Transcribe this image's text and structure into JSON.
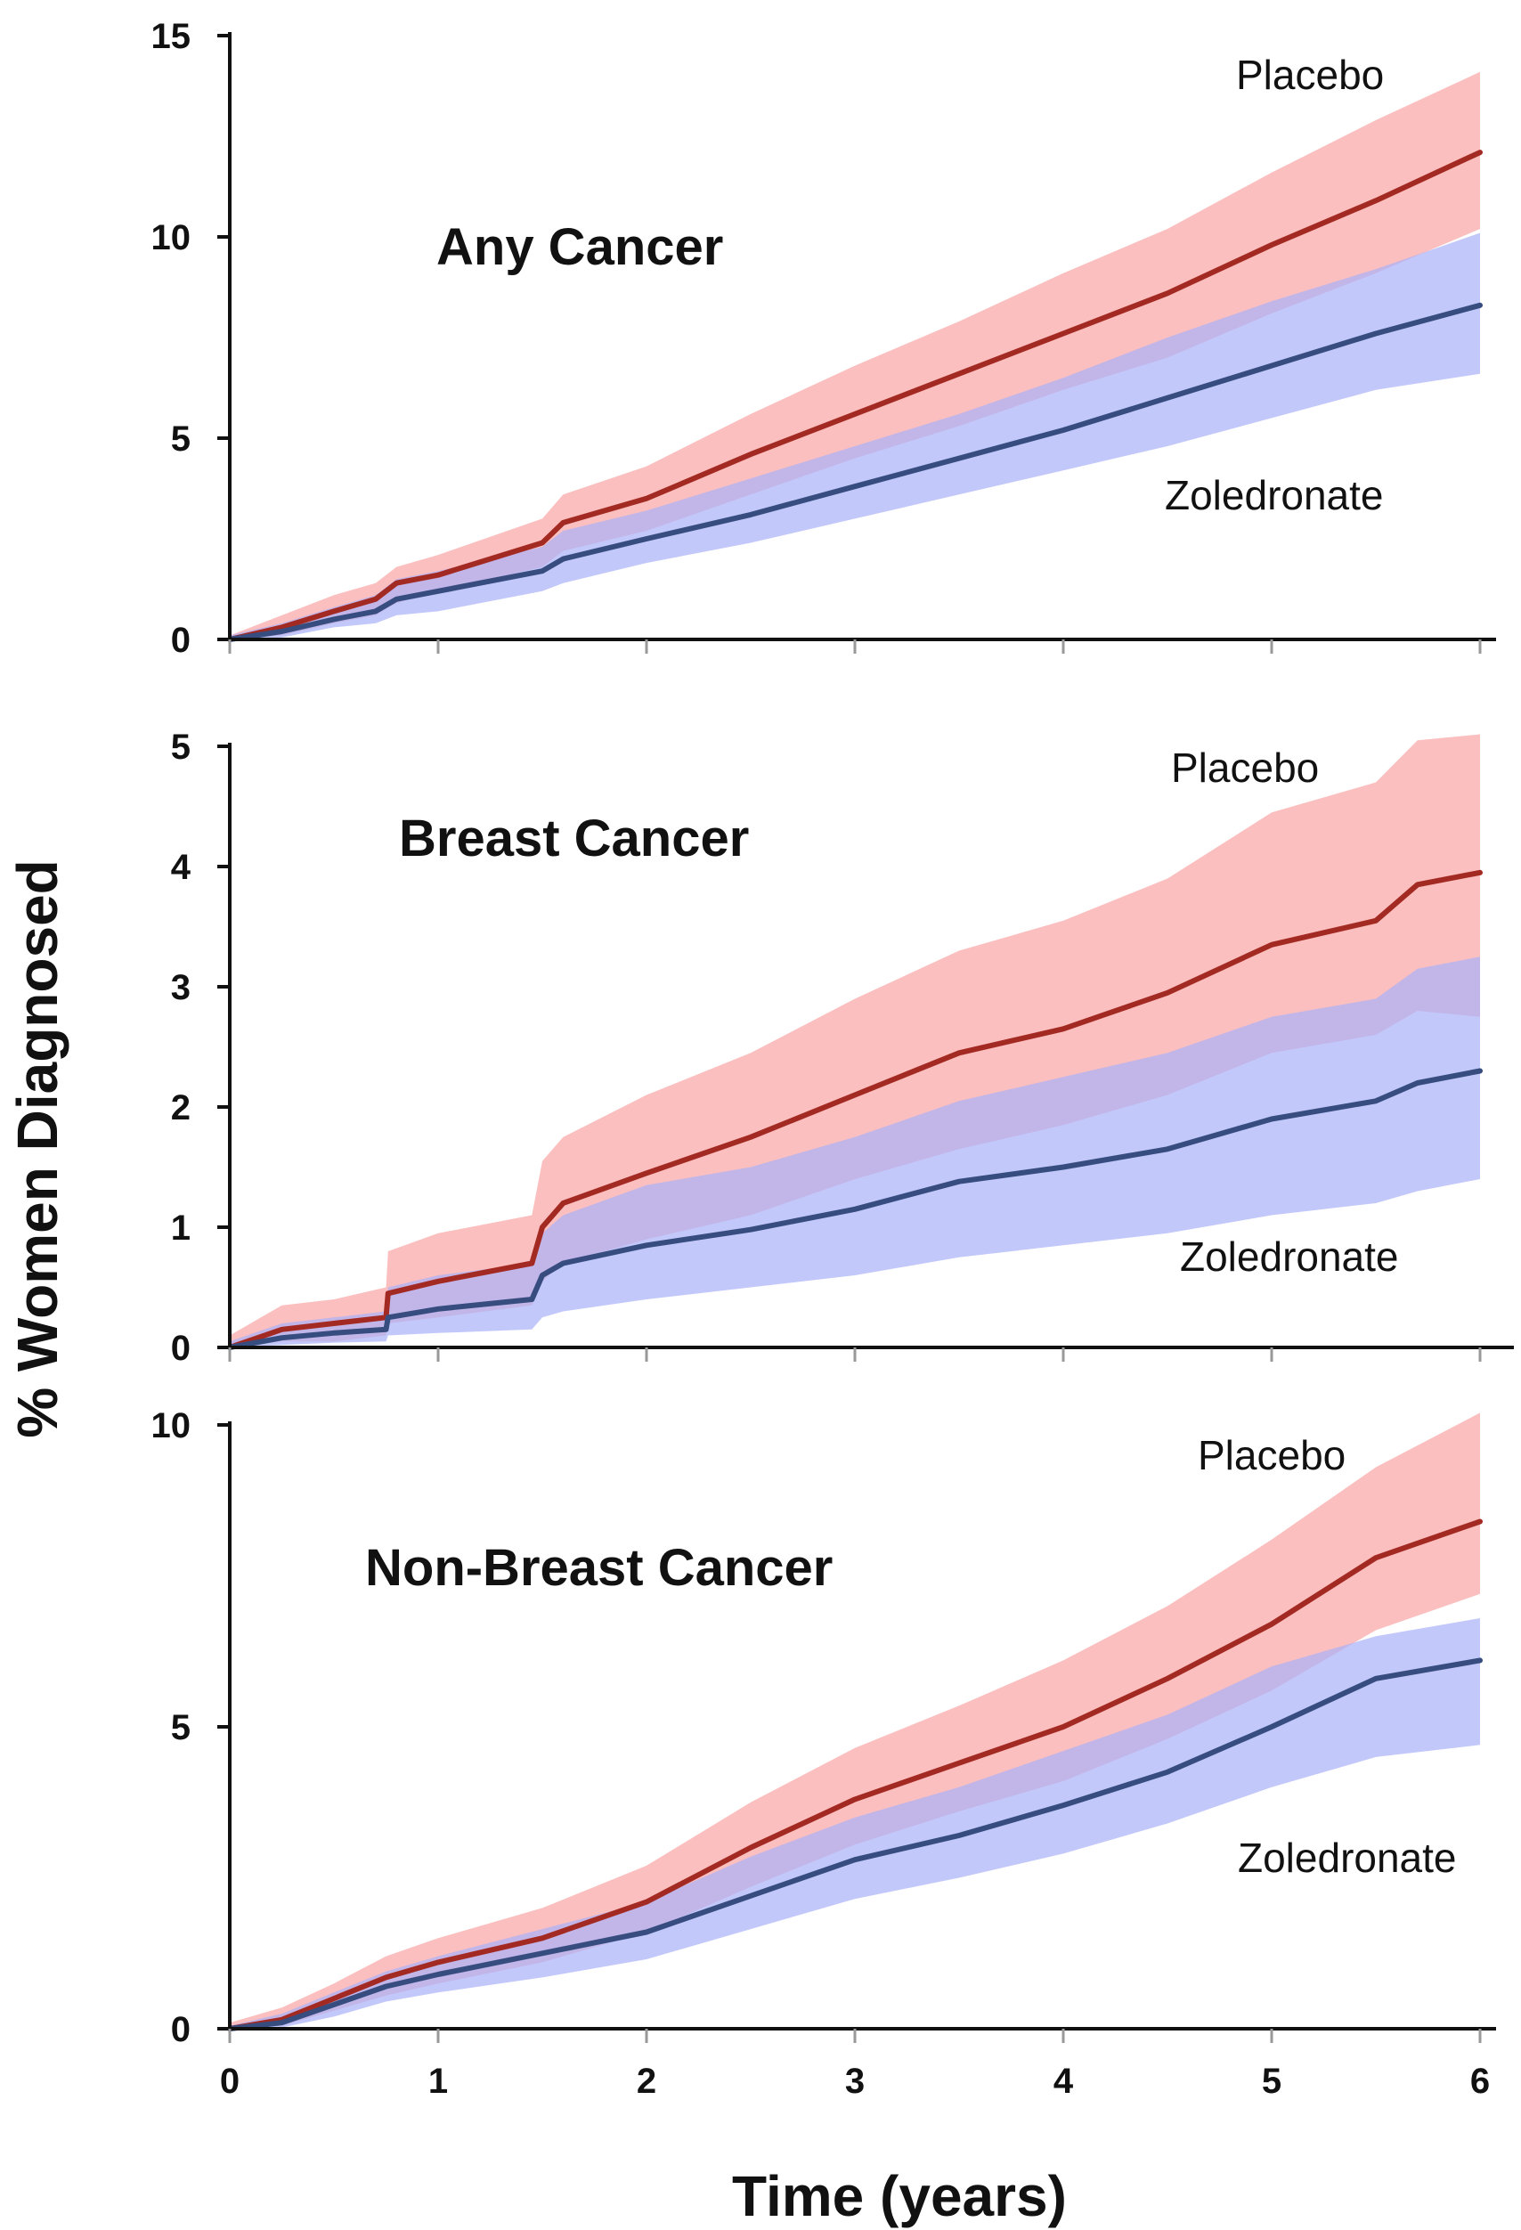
{
  "chart_data": [
    {
      "type": "line",
      "title": "Any Cancer",
      "xlabel": "",
      "ylabel": "",
      "xlim": [
        0,
        6
      ],
      "ylim": [
        0,
        15
      ],
      "yticks": [
        0,
        5,
        10,
        15
      ],
      "xticks": [
        0,
        1,
        2,
        3,
        4,
        5,
        6
      ],
      "series": [
        {
          "name": "Placebo",
          "color": "#a32a22",
          "band_color": "#f9a4a4",
          "x": [
            0,
            0.25,
            0.5,
            0.7,
            0.8,
            1.0,
            1.5,
            1.6,
            2.0,
            2.5,
            3.0,
            3.5,
            4.0,
            4.5,
            5.0,
            5.5,
            6.0
          ],
          "y": [
            0,
            0.3,
            0.7,
            1.0,
            1.4,
            1.6,
            2.4,
            2.9,
            3.5,
            4.6,
            5.6,
            6.6,
            7.6,
            8.6,
            9.8,
            10.9,
            12.1
          ],
          "lower": [
            0,
            0.1,
            0.4,
            0.6,
            0.9,
            1.2,
            1.8,
            2.2,
            2.7,
            3.6,
            4.5,
            5.3,
            6.2,
            7.0,
            8.1,
            9.1,
            10.2
          ],
          "upper": [
            0.1,
            0.6,
            1.1,
            1.4,
            1.8,
            2.1,
            3.0,
            3.6,
            4.3,
            5.6,
            6.8,
            7.9,
            9.1,
            10.2,
            11.6,
            12.9,
            14.1
          ]
        },
        {
          "name": "Zoledronate",
          "color": "#374d80",
          "band_color": "#aab0fa",
          "x": [
            0,
            0.25,
            0.5,
            0.7,
            0.8,
            1.0,
            1.5,
            1.6,
            2.0,
            2.5,
            3.0,
            3.5,
            4.0,
            4.5,
            5.0,
            5.5,
            6.0
          ],
          "y": [
            0,
            0.2,
            0.5,
            0.7,
            1.0,
            1.2,
            1.7,
            2.0,
            2.5,
            3.1,
            3.8,
            4.5,
            5.2,
            6.0,
            6.8,
            7.6,
            8.3
          ],
          "lower": [
            0,
            0.05,
            0.3,
            0.4,
            0.6,
            0.7,
            1.2,
            1.4,
            1.9,
            2.4,
            3.0,
            3.6,
            4.2,
            4.8,
            5.5,
            6.2,
            6.6
          ],
          "upper": [
            0.1,
            0.4,
            0.8,
            1.1,
            1.5,
            1.7,
            2.3,
            2.7,
            3.2,
            4.0,
            4.8,
            5.6,
            6.5,
            7.5,
            8.4,
            9.2,
            10.1
          ]
        }
      ]
    },
    {
      "type": "line",
      "title": "Breast Cancer",
      "xlabel": "",
      "ylabel": "",
      "xlim": [
        0,
        6
      ],
      "ylim": [
        0,
        5
      ],
      "yticks": [
        0,
        1,
        2,
        3,
        4,
        5
      ],
      "xticks": [
        0,
        1,
        2,
        3,
        4,
        5,
        6
      ],
      "series": [
        {
          "name": "Placebo",
          "color": "#a32a22",
          "band_color": "#f9a4a4",
          "x": [
            0,
            0.25,
            0.5,
            0.75,
            0.76,
            1.0,
            1.45,
            1.5,
            1.6,
            2.0,
            2.5,
            3.0,
            3.5,
            4.0,
            4.5,
            5.0,
            5.5,
            5.7,
            6.0
          ],
          "y": [
            0,
            0.15,
            0.2,
            0.25,
            0.45,
            0.55,
            0.7,
            1.0,
            1.2,
            1.45,
            1.75,
            2.1,
            2.45,
            2.65,
            2.95,
            3.35,
            3.55,
            3.85,
            3.95
          ],
          "lower": [
            0,
            0.05,
            0.05,
            0.1,
            0.2,
            0.25,
            0.35,
            0.55,
            0.7,
            0.9,
            1.1,
            1.4,
            1.65,
            1.85,
            2.1,
            2.45,
            2.6,
            2.8,
            2.75
          ],
          "upper": [
            0.1,
            0.35,
            0.4,
            0.5,
            0.8,
            0.95,
            1.1,
            1.55,
            1.75,
            2.1,
            2.45,
            2.9,
            3.3,
            3.55,
            3.9,
            4.45,
            4.7,
            5.05,
            5.1
          ]
        },
        {
          "name": "Zoledronate",
          "color": "#374d80",
          "band_color": "#aab0fa",
          "x": [
            0,
            0.25,
            0.5,
            0.75,
            0.76,
            1.0,
            1.45,
            1.5,
            1.6,
            2.0,
            2.5,
            3.0,
            3.5,
            4.0,
            4.5,
            5.0,
            5.5,
            5.7,
            6.0
          ],
          "y": [
            0,
            0.08,
            0.12,
            0.15,
            0.25,
            0.32,
            0.4,
            0.6,
            0.7,
            0.85,
            0.98,
            1.15,
            1.38,
            1.5,
            1.65,
            1.9,
            2.05,
            2.2,
            2.3
          ],
          "lower": [
            0,
            0.02,
            0.04,
            0.05,
            0.1,
            0.12,
            0.15,
            0.25,
            0.3,
            0.4,
            0.5,
            0.6,
            0.75,
            0.85,
            0.95,
            1.1,
            1.2,
            1.3,
            1.4
          ],
          "upper": [
            0.05,
            0.2,
            0.25,
            0.3,
            0.5,
            0.6,
            0.7,
            0.95,
            1.1,
            1.35,
            1.5,
            1.75,
            2.05,
            2.25,
            2.45,
            2.75,
            2.9,
            3.15,
            3.25
          ]
        }
      ]
    },
    {
      "type": "line",
      "title": "Non-Breast Cancer",
      "xlabel": "Time (years)",
      "ylabel": "",
      "xlim": [
        0,
        6
      ],
      "ylim": [
        0,
        10
      ],
      "yticks": [
        0,
        5,
        10
      ],
      "xticks": [
        0,
        1,
        2,
        3,
        4,
        5,
        6
      ],
      "series": [
        {
          "name": "Placebo",
          "color": "#a32a22",
          "band_color": "#f9a4a4",
          "x": [
            0,
            0.25,
            0.5,
            0.75,
            1.0,
            1.5,
            2.0,
            2.5,
            3.0,
            3.5,
            4.0,
            4.5,
            5.0,
            5.5,
            6.0
          ],
          "y": [
            0,
            0.15,
            0.5,
            0.85,
            1.1,
            1.5,
            2.1,
            3.0,
            3.8,
            4.4,
            5.0,
            5.8,
            6.7,
            7.8,
            8.4
          ],
          "lower": [
            0,
            0.05,
            0.3,
            0.55,
            0.75,
            1.1,
            1.6,
            2.35,
            3.05,
            3.6,
            4.1,
            4.8,
            5.6,
            6.6,
            7.2
          ],
          "upper": [
            0.1,
            0.35,
            0.75,
            1.2,
            1.5,
            2.0,
            2.7,
            3.75,
            4.65,
            5.35,
            6.1,
            7.0,
            8.1,
            9.3,
            10.2
          ]
        },
        {
          "name": "Zoledronate",
          "color": "#374d80",
          "band_color": "#aab0fa",
          "x": [
            0,
            0.25,
            0.5,
            0.75,
            1.0,
            1.5,
            2.0,
            2.5,
            3.0,
            3.5,
            4.0,
            4.5,
            5.0,
            5.5,
            6.0
          ],
          "y": [
            0,
            0.1,
            0.4,
            0.7,
            0.9,
            1.25,
            1.6,
            2.2,
            2.8,
            3.2,
            3.7,
            4.25,
            5.0,
            5.8,
            6.1
          ],
          "lower": [
            0,
            0.02,
            0.2,
            0.45,
            0.6,
            0.85,
            1.15,
            1.65,
            2.15,
            2.5,
            2.9,
            3.4,
            4.0,
            4.5,
            4.7
          ],
          "upper": [
            0.05,
            0.25,
            0.6,
            0.95,
            1.2,
            1.65,
            2.1,
            2.85,
            3.5,
            4.0,
            4.6,
            5.2,
            6.0,
            6.5,
            6.8
          ]
        }
      ]
    }
  ],
  "ylabel_shared": "% Women Diagnosed"
}
